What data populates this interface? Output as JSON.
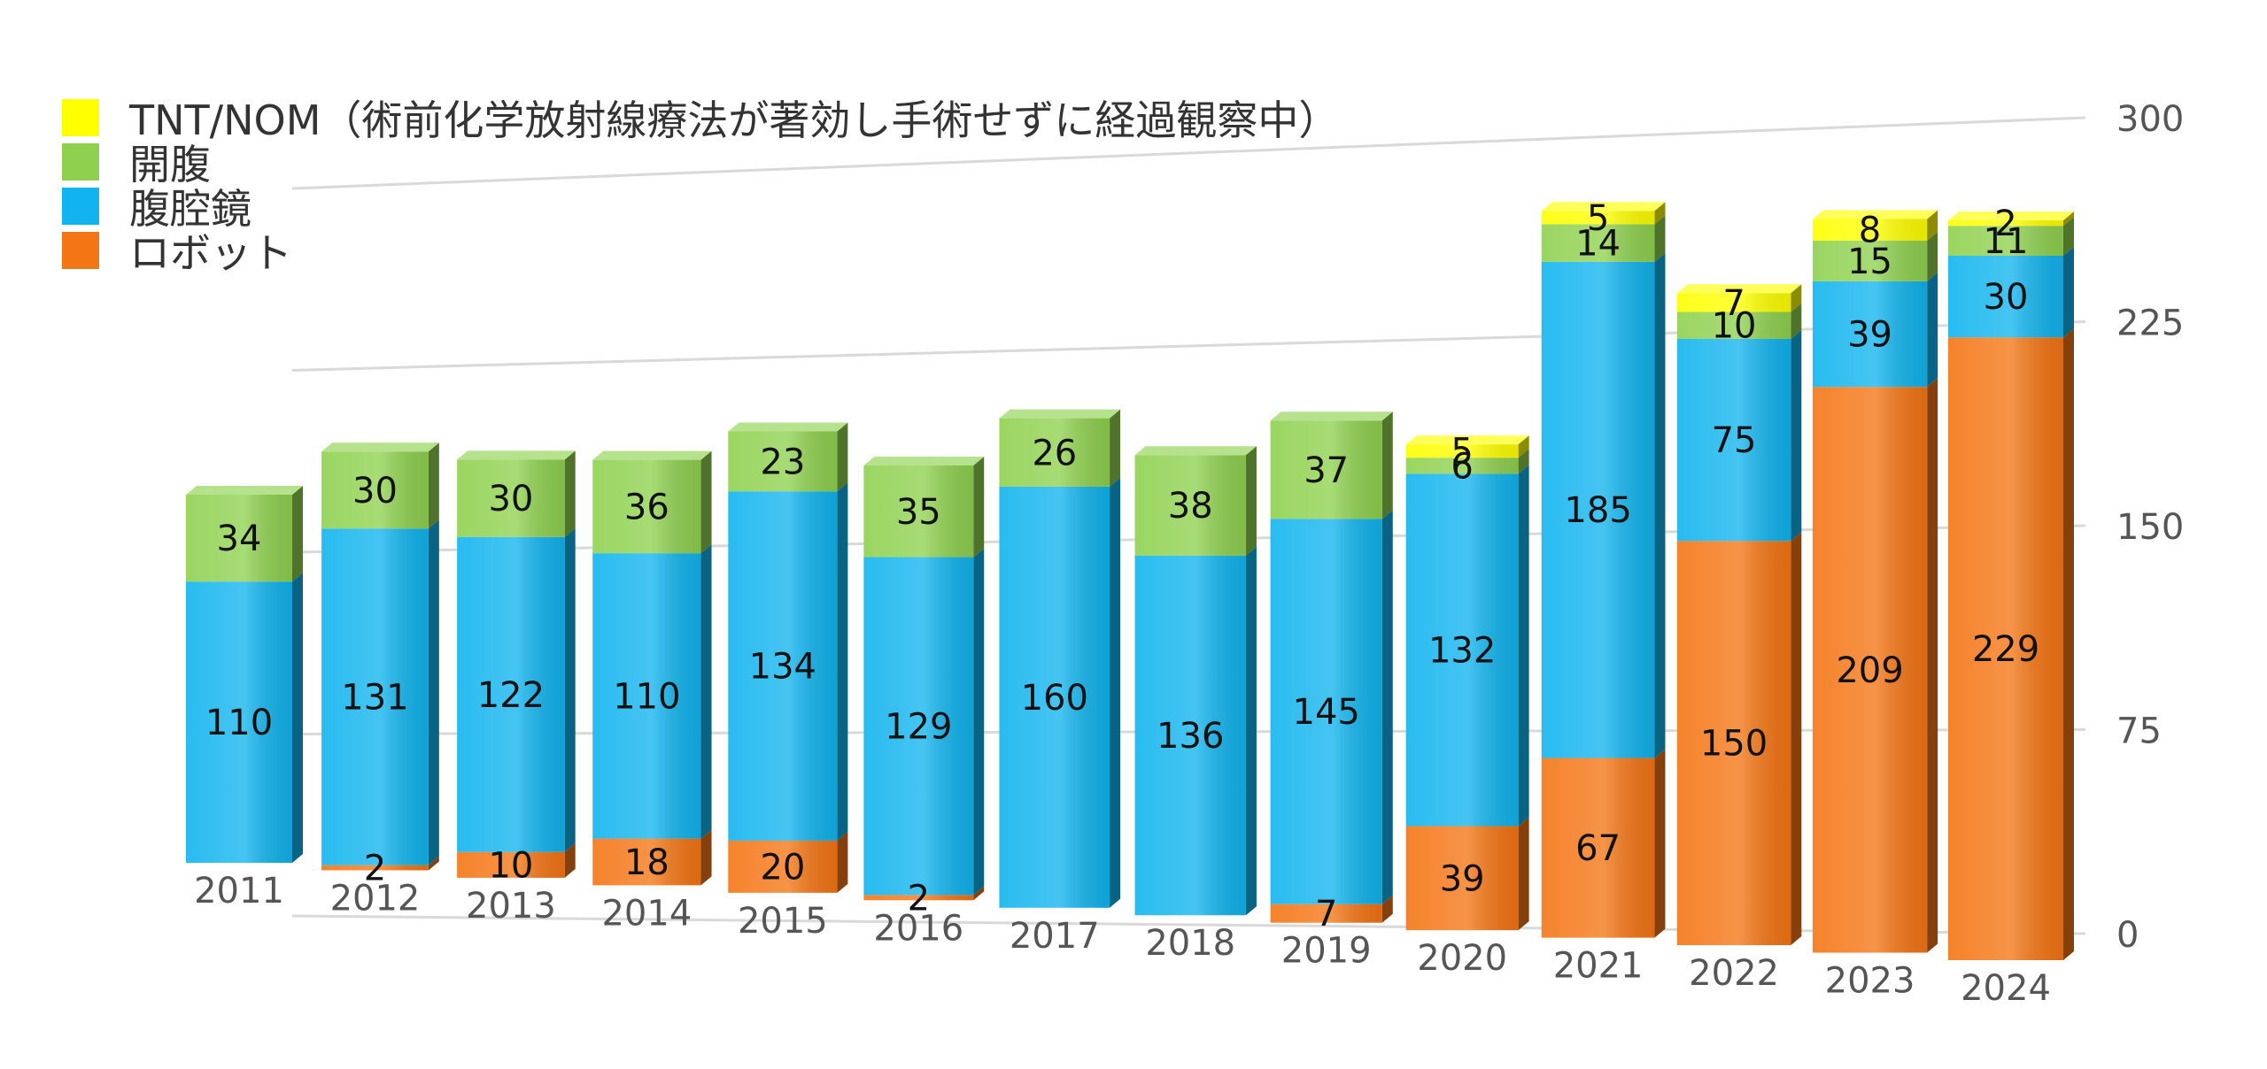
{
  "chart_data": {
    "type": "bar",
    "stacked": true,
    "categories": [
      "2011",
      "2012",
      "2013",
      "2014",
      "2015",
      "2016",
      "2017",
      "2018",
      "2019",
      "2020",
      "2021",
      "2022",
      "2023",
      "2024"
    ],
    "series": [
      {
        "name": "ロボット",
        "color": "#F47514",
        "values": [
          0,
          2,
          10,
          18,
          20,
          2,
          0,
          0,
          7,
          39,
          67,
          150,
          209,
          229
        ]
      },
      {
        "name": "腹腔鏡",
        "color": "#11B4EE",
        "values": [
          110,
          131,
          122,
          110,
          134,
          129,
          160,
          136,
          145,
          132,
          185,
          75,
          39,
          30
        ]
      },
      {
        "name": "開腹",
        "color": "#8FD14F",
        "values": [
          34,
          30,
          30,
          36,
          23,
          35,
          26,
          38,
          37,
          6,
          14,
          10,
          15,
          11
        ]
      },
      {
        "name": "TNT/NOM（術前化学放射線療法が著効し手術せずに経過観察中）",
        "color": "#FFFF00",
        "values": [
          0,
          0,
          0,
          0,
          0,
          0,
          0,
          0,
          0,
          5,
          5,
          7,
          8,
          2
        ]
      }
    ],
    "legend_order": [
      3,
      2,
      1,
      0
    ],
    "y_ticks": [
      0,
      75,
      150,
      225,
      300
    ],
    "ylim": [
      0,
      300
    ],
    "y_axis_position": "right",
    "legend_position": "top-left",
    "grid": true
  }
}
